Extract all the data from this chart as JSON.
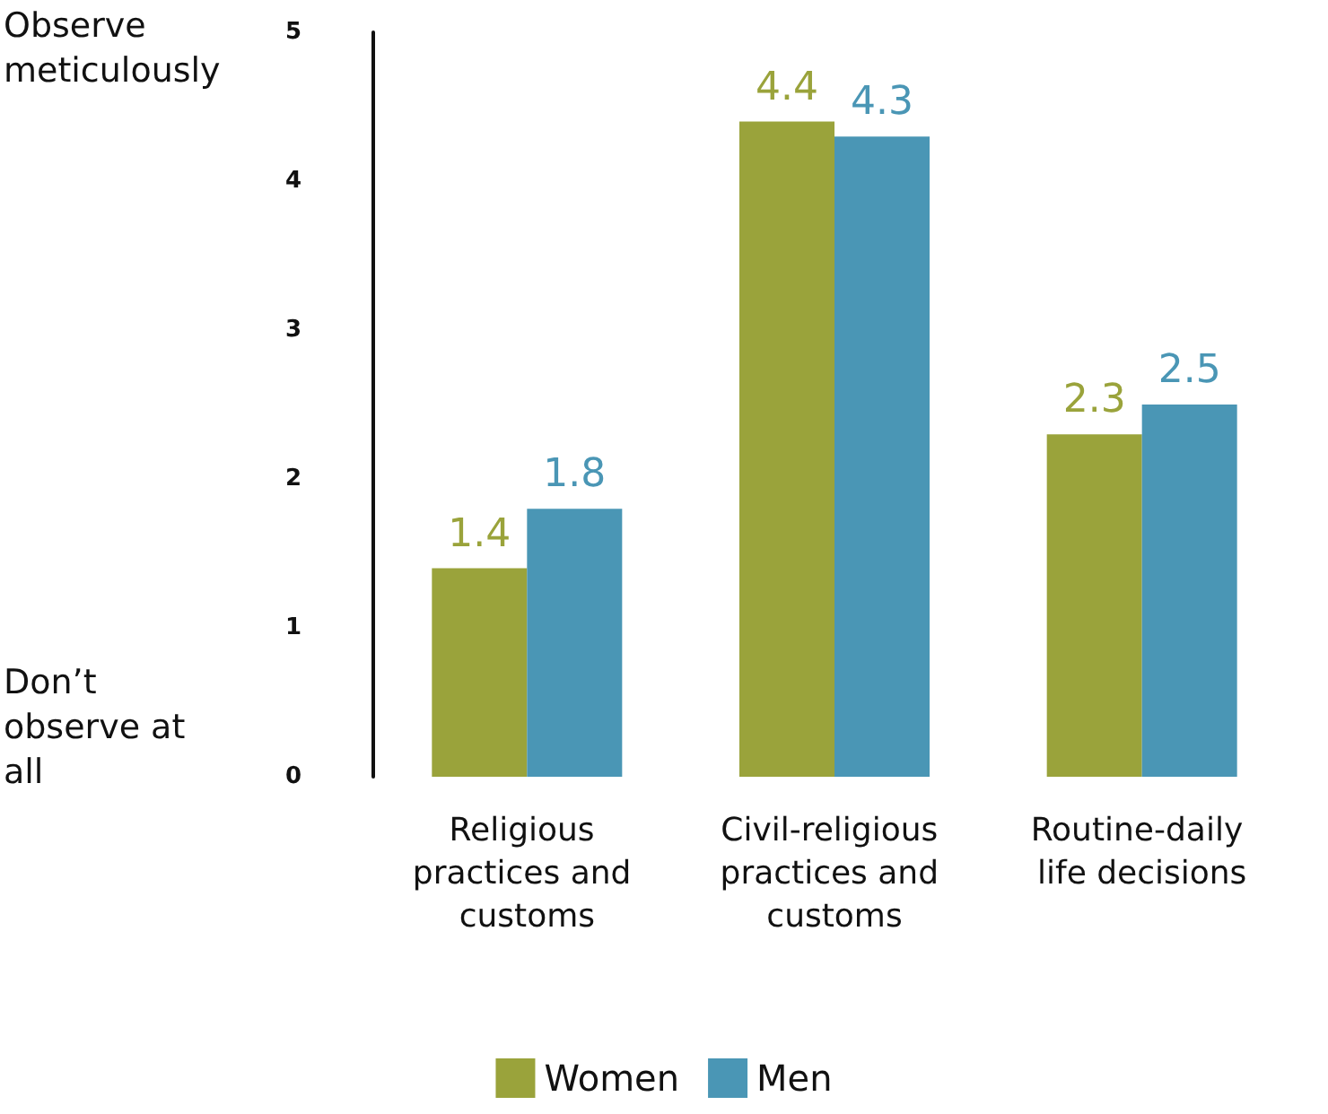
{
  "chart_data": {
    "type": "bar",
    "categories": [
      "Religious practices and customs",
      "Civil-religious practices and customs",
      "Routine-daily life decisions"
    ],
    "series": [
      {
        "name": "Women",
        "color": "#9aa33b",
        "values": [
          1.4,
          4.4,
          2.3
        ]
      },
      {
        "name": "Men",
        "color": "#4a96b5",
        "values": [
          1.8,
          4.3,
          2.5
        ]
      }
    ],
    "ylim": [
      0,
      5
    ],
    "yticks": [
      0,
      1,
      2,
      3,
      4,
      5
    ],
    "grid": false,
    "legend": "bottom",
    "data_labels": true,
    "annotations": [
      "Observe meticulously",
      "Don’t observe at all"
    ]
  }
}
